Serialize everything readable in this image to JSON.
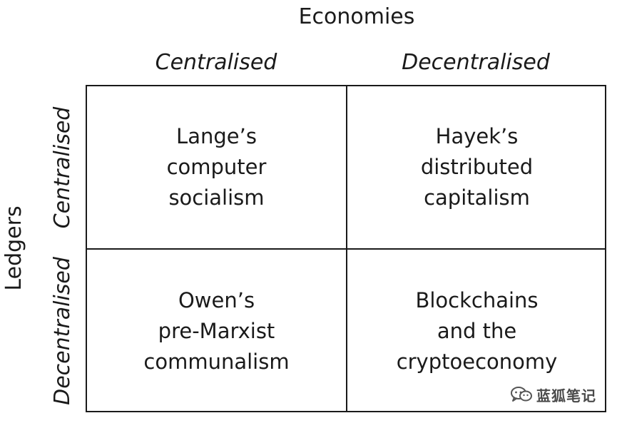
{
  "top_title": "Economies",
  "side_title": "Ledgers",
  "columns": [
    "Centralised",
    "Decentralised"
  ],
  "rows": [
    "Centralised",
    "Decentralised"
  ],
  "cells": {
    "tl": [
      "Lange’s",
      "computer",
      "socialism"
    ],
    "tr": [
      "Hayek’s",
      "distributed",
      "capitalism"
    ],
    "bl": [
      "Owen’s",
      "pre-Marxist",
      "communalism"
    ],
    "br": [
      "Blockchains",
      "and the",
      "cryptoeconomy"
    ]
  },
  "watermark": {
    "icon": "wechat-icon",
    "text": "蓝狐笔记"
  }
}
